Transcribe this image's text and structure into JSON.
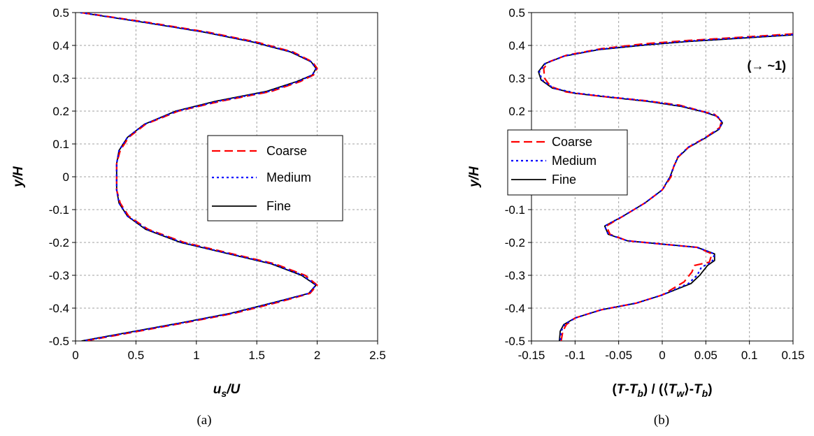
{
  "chart_data": [
    {
      "type": "line",
      "caption": "(a)",
      "xlabel_main": "u",
      "xlabel_sub": "s",
      "xlabel_rest": "/U",
      "ylabel": "y/H",
      "xlim": [
        0,
        2.5
      ],
      "ylim": [
        -0.5,
        0.5
      ],
      "xticks": [
        0,
        0.5,
        1,
        1.5,
        2,
        2.5
      ],
      "yticks": [
        -0.5,
        -0.4,
        -0.3,
        -0.2,
        -0.1,
        0,
        0.1,
        0.2,
        0.3,
        0.4,
        0.5
      ],
      "xtick_labels": [
        "0",
        "0.5",
        "1",
        "1.5",
        "2",
        "2.5"
      ],
      "ytick_labels": [
        "-0.5",
        "-0.4",
        "-0.3",
        "-0.2",
        "-0.1",
        "0",
        "0.1",
        "0.2",
        "0.3",
        "0.4",
        "0.5"
      ],
      "grid": true,
      "legend_position": "center-right",
      "series": [
        {
          "name": "Coarse",
          "color": "#ff0000",
          "style": "dashed",
          "points": [
            [
              0.05,
              0.5
            ],
            [
              0.6,
              0.47
            ],
            [
              1.1,
              0.44
            ],
            [
              1.5,
              0.41
            ],
            [
              1.8,
              0.38
            ],
            [
              1.96,
              0.35
            ],
            [
              2.0,
              0.33
            ],
            [
              1.97,
              0.31
            ],
            [
              1.86,
              0.29
            ],
            [
              1.62,
              0.26
            ],
            [
              1.2,
              0.23
            ],
            [
              0.85,
              0.2
            ],
            [
              0.58,
              0.16
            ],
            [
              0.44,
              0.12
            ],
            [
              0.37,
              0.08
            ],
            [
              0.34,
              0.04
            ],
            [
              0.34,
              0.0
            ],
            [
              0.34,
              -0.04
            ],
            [
              0.37,
              -0.08
            ],
            [
              0.44,
              -0.12
            ],
            [
              0.6,
              -0.16
            ],
            [
              0.9,
              -0.2
            ],
            [
              1.3,
              -0.235
            ],
            [
              1.65,
              -0.265
            ],
            [
              1.9,
              -0.3
            ],
            [
              2.0,
              -0.33
            ],
            [
              1.94,
              -0.355
            ],
            [
              1.7,
              -0.38
            ],
            [
              1.32,
              -0.415
            ],
            [
              0.9,
              -0.445
            ],
            [
              0.45,
              -0.475
            ],
            [
              0.08,
              -0.5
            ]
          ]
        },
        {
          "name": "Medium",
          "color": "#0000ff",
          "style": "dotted",
          "points": [
            [
              0.04,
              0.5
            ],
            [
              0.58,
              0.47
            ],
            [
              1.08,
              0.44
            ],
            [
              1.48,
              0.41
            ],
            [
              1.79,
              0.38
            ],
            [
              1.95,
              0.35
            ],
            [
              1.99,
              0.33
            ],
            [
              1.96,
              0.31
            ],
            [
              1.84,
              0.29
            ],
            [
              1.6,
              0.26
            ],
            [
              1.18,
              0.23
            ],
            [
              0.84,
              0.2
            ],
            [
              0.57,
              0.16
            ],
            [
              0.43,
              0.12
            ],
            [
              0.36,
              0.08
            ],
            [
              0.34,
              0.04
            ],
            [
              0.34,
              0.0
            ],
            [
              0.34,
              -0.04
            ],
            [
              0.36,
              -0.08
            ],
            [
              0.43,
              -0.12
            ],
            [
              0.59,
              -0.16
            ],
            [
              0.88,
              -0.2
            ],
            [
              1.28,
              -0.235
            ],
            [
              1.63,
              -0.265
            ],
            [
              1.88,
              -0.3
            ],
            [
              1.99,
              -0.33
            ],
            [
              1.93,
              -0.355
            ],
            [
              1.68,
              -0.38
            ],
            [
              1.3,
              -0.415
            ],
            [
              0.88,
              -0.445
            ],
            [
              0.43,
              -0.475
            ],
            [
              0.06,
              -0.5
            ]
          ]
        },
        {
          "name": "Fine",
          "color": "#000000",
          "style": "solid",
          "points": [
            [
              0.04,
              0.5
            ],
            [
              0.57,
              0.47
            ],
            [
              1.07,
              0.44
            ],
            [
              1.47,
              0.41
            ],
            [
              1.78,
              0.38
            ],
            [
              1.95,
              0.35
            ],
            [
              1.99,
              0.33
            ],
            [
              1.96,
              0.31
            ],
            [
              1.83,
              0.29
            ],
            [
              1.58,
              0.26
            ],
            [
              1.16,
              0.23
            ],
            [
              0.83,
              0.2
            ],
            [
              0.57,
              0.16
            ],
            [
              0.43,
              0.12
            ],
            [
              0.36,
              0.08
            ],
            [
              0.34,
              0.04
            ],
            [
              0.34,
              0.0
            ],
            [
              0.34,
              -0.04
            ],
            [
              0.36,
              -0.08
            ],
            [
              0.43,
              -0.12
            ],
            [
              0.58,
              -0.16
            ],
            [
              0.87,
              -0.2
            ],
            [
              1.27,
              -0.235
            ],
            [
              1.62,
              -0.265
            ],
            [
              1.87,
              -0.3
            ],
            [
              1.99,
              -0.33
            ],
            [
              1.93,
              -0.355
            ],
            [
              1.67,
              -0.38
            ],
            [
              1.29,
              -0.415
            ],
            [
              0.87,
              -0.445
            ],
            [
              0.42,
              -0.475
            ],
            [
              0.05,
              -0.5
            ]
          ]
        }
      ]
    },
    {
      "type": "line",
      "caption": "(b)",
      "xlabel_parts": [
        "(",
        "T",
        "-",
        "T",
        "b",
        ") / (⟨",
        "T",
        "w",
        "⟩-",
        "T",
        "b",
        ")"
      ],
      "ylabel": "y/H",
      "annotation": "(→ ~1)",
      "xlim": [
        -0.15,
        0.15
      ],
      "ylim": [
        -0.5,
        0.5
      ],
      "xticks": [
        -0.15,
        -0.1,
        -0.05,
        0,
        0.05,
        0.1,
        0.15
      ],
      "yticks": [
        -0.5,
        -0.4,
        -0.3,
        -0.2,
        -0.1,
        0,
        0.1,
        0.2,
        0.3,
        0.4,
        0.5
      ],
      "xtick_labels": [
        "-0.15",
        "-0.1",
        "-0.05",
        "0",
        "0.05",
        "0.1",
        "0.15"
      ],
      "ytick_labels": [
        "-0.5",
        "-0.4",
        "-0.3",
        "-0.2",
        "-0.1",
        "0",
        "0.1",
        "0.2",
        "0.3",
        "0.4",
        "0.5"
      ],
      "grid": true,
      "legend_position": "center-left",
      "series": [
        {
          "name": "Coarse",
          "color": "#ff0000",
          "style": "dashed",
          "points": [
            [
              0.15,
              0.435
            ],
            [
              0.09,
              0.425
            ],
            [
              0.03,
              0.415
            ],
            [
              -0.02,
              0.405
            ],
            [
              -0.07,
              0.39
            ],
            [
              -0.11,
              0.37
            ],
            [
              -0.13,
              0.35
            ],
            [
              -0.136,
              0.33
            ],
            [
              -0.135,
              0.3
            ],
            [
              -0.128,
              0.275
            ],
            [
              -0.11,
              0.258
            ],
            [
              -0.07,
              0.245
            ],
            [
              -0.02,
              0.232
            ],
            [
              0.02,
              0.218
            ],
            [
              0.045,
              0.2
            ],
            [
              0.06,
              0.19
            ],
            [
              0.068,
              0.17
            ],
            [
              0.066,
              0.15
            ],
            [
              0.05,
              0.12
            ],
            [
              0.03,
              0.09
            ],
            [
              0.018,
              0.06
            ],
            [
              0.013,
              0.03
            ],
            [
              0.01,
              0.0
            ],
            [
              0.0,
              -0.04
            ],
            [
              -0.02,
              -0.08
            ],
            [
              -0.045,
              -0.12
            ],
            [
              -0.064,
              -0.15
            ],
            [
              -0.06,
              -0.175
            ],
            [
              -0.04,
              -0.195
            ],
            [
              0.0,
              -0.205
            ],
            [
              0.04,
              -0.215
            ],
            [
              0.057,
              -0.235
            ],
            [
              0.054,
              -0.26
            ],
            [
              0.037,
              -0.27
            ],
            [
              0.034,
              -0.29
            ],
            [
              0.025,
              -0.32
            ],
            [
              0.0,
              -0.36
            ],
            [
              -0.03,
              -0.385
            ],
            [
              -0.07,
              -0.405
            ],
            [
              -0.1,
              -0.43
            ],
            [
              -0.11,
              -0.45
            ],
            [
              -0.114,
              -0.47
            ],
            [
              -0.116,
              -0.5
            ]
          ]
        },
        {
          "name": "Medium",
          "color": "#0000ff",
          "style": "dotted",
          "points": [
            [
              0.15,
              0.433
            ],
            [
              0.09,
              0.423
            ],
            [
              0.03,
              0.413
            ],
            [
              -0.02,
              0.402
            ],
            [
              -0.072,
              0.388
            ],
            [
              -0.112,
              0.368
            ],
            [
              -0.134,
              0.345
            ],
            [
              -0.141,
              0.32
            ],
            [
              -0.138,
              0.295
            ],
            [
              -0.125,
              0.27
            ],
            [
              -0.1,
              0.255
            ],
            [
              -0.06,
              0.243
            ],
            [
              -0.015,
              0.23
            ],
            [
              0.022,
              0.215
            ],
            [
              0.048,
              0.198
            ],
            [
              0.063,
              0.185
            ],
            [
              0.069,
              0.165
            ],
            [
              0.065,
              0.145
            ],
            [
              0.05,
              0.12
            ],
            [
              0.03,
              0.09
            ],
            [
              0.018,
              0.06
            ],
            [
              0.013,
              0.03
            ],
            [
              0.009,
              0.0
            ],
            [
              0.0,
              -0.04
            ],
            [
              -0.02,
              -0.08
            ],
            [
              -0.045,
              -0.12
            ],
            [
              -0.066,
              -0.15
            ],
            [
              -0.062,
              -0.175
            ],
            [
              -0.04,
              -0.195
            ],
            [
              0.0,
              -0.205
            ],
            [
              0.04,
              -0.215
            ],
            [
              0.06,
              -0.235
            ],
            [
              0.057,
              -0.26
            ],
            [
              0.045,
              -0.275
            ],
            [
              0.04,
              -0.3
            ],
            [
              0.03,
              -0.325
            ],
            [
              0.0,
              -0.36
            ],
            [
              -0.03,
              -0.385
            ],
            [
              -0.07,
              -0.405
            ],
            [
              -0.1,
              -0.43
            ],
            [
              -0.112,
              -0.45
            ],
            [
              -0.116,
              -0.47
            ],
            [
              -0.117,
              -0.5
            ]
          ]
        },
        {
          "name": "Fine",
          "color": "#000000",
          "style": "solid",
          "points": [
            [
              0.15,
              0.432
            ],
            [
              0.09,
              0.422
            ],
            [
              0.03,
              0.412
            ],
            [
              -0.02,
              0.401
            ],
            [
              -0.073,
              0.387
            ],
            [
              -0.113,
              0.367
            ],
            [
              -0.135,
              0.344
            ],
            [
              -0.142,
              0.32
            ],
            [
              -0.139,
              0.295
            ],
            [
              -0.126,
              0.27
            ],
            [
              -0.1,
              0.254
            ],
            [
              -0.06,
              0.242
            ],
            [
              -0.015,
              0.229
            ],
            [
              0.022,
              0.214
            ],
            [
              0.048,
              0.197
            ],
            [
              0.063,
              0.184
            ],
            [
              0.069,
              0.164
            ],
            [
              0.065,
              0.144
            ],
            [
              0.05,
              0.119
            ],
            [
              0.03,
              0.089
            ],
            [
              0.018,
              0.059
            ],
            [
              0.013,
              0.029
            ],
            [
              0.009,
              0.0
            ],
            [
              0.0,
              -0.04
            ],
            [
              -0.02,
              -0.08
            ],
            [
              -0.045,
              -0.12
            ],
            [
              -0.066,
              -0.15
            ],
            [
              -0.062,
              -0.175
            ],
            [
              -0.04,
              -0.195
            ],
            [
              0.0,
              -0.205
            ],
            [
              0.04,
              -0.215
            ],
            [
              0.06,
              -0.235
            ],
            [
              0.06,
              -0.255
            ],
            [
              0.052,
              -0.27
            ],
            [
              0.043,
              -0.3
            ],
            [
              0.033,
              -0.325
            ],
            [
              0.0,
              -0.36
            ],
            [
              -0.03,
              -0.385
            ],
            [
              -0.07,
              -0.405
            ],
            [
              -0.1,
              -0.43
            ],
            [
              -0.113,
              -0.45
            ],
            [
              -0.117,
              -0.47
            ],
            [
              -0.118,
              -0.5
            ]
          ]
        }
      ]
    }
  ]
}
